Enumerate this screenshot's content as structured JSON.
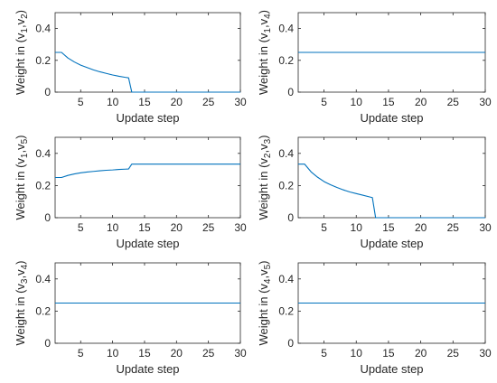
{
  "chart_data": [
    {
      "type": "line",
      "xlabel": "Update step",
      "ylabel": {
        "base": "Weight in (v",
        "sub1": "1",
        "mid": ",v",
        "sub2": "2",
        "end": ")"
      },
      "xlim": [
        1,
        30
      ],
      "ylim": [
        0,
        0.5
      ],
      "xticks": [
        5,
        10,
        15,
        20,
        25,
        30
      ],
      "yticks": [
        0,
        0.2,
        0.4
      ],
      "grid": false,
      "series": [
        {
          "color": "#0072BD",
          "x": [
            1,
            2,
            3,
            4,
            5,
            6,
            7,
            8,
            9,
            10,
            11,
            12,
            12.5,
            13,
            14,
            15,
            20,
            25,
            30
          ],
          "y": [
            0.25,
            0.25,
            0.215,
            0.19,
            0.17,
            0.155,
            0.14,
            0.128,
            0.118,
            0.108,
            0.1,
            0.093,
            0.09,
            0,
            0,
            0,
            0,
            0,
            0
          ]
        }
      ]
    },
    {
      "type": "line",
      "xlabel": "Update step",
      "ylabel": {
        "base": "Weight in (v",
        "sub1": "1",
        "mid": ",v",
        "sub2": "4",
        "end": ")"
      },
      "xlim": [
        1,
        30
      ],
      "ylim": [
        0,
        0.5
      ],
      "xticks": [
        5,
        10,
        15,
        20,
        25,
        30
      ],
      "yticks": [
        0,
        0.2,
        0.4
      ],
      "grid": false,
      "series": [
        {
          "color": "#0072BD",
          "x": [
            1,
            30
          ],
          "y": [
            0.25,
            0.25
          ]
        }
      ]
    },
    {
      "type": "line",
      "xlabel": "Update step",
      "ylabel": {
        "base": "Weight in (v",
        "sub1": "1",
        "mid": ",v",
        "sub2": "5",
        "end": ")"
      },
      "xlim": [
        1,
        30
      ],
      "ylim": [
        0,
        0.5
      ],
      "xticks": [
        5,
        10,
        15,
        20,
        25,
        30
      ],
      "yticks": [
        0,
        0.2,
        0.4
      ],
      "grid": false,
      "series": [
        {
          "color": "#0072BD",
          "x": [
            1,
            2,
            3,
            4,
            5,
            6,
            7,
            8,
            9,
            10,
            11,
            12,
            12.5,
            13,
            14,
            15,
            20,
            25,
            30
          ],
          "y": [
            0.25,
            0.25,
            0.263,
            0.272,
            0.279,
            0.284,
            0.288,
            0.292,
            0.295,
            0.297,
            0.3,
            0.302,
            0.303,
            0.333,
            0.333,
            0.333,
            0.333,
            0.333,
            0.333
          ]
        }
      ]
    },
    {
      "type": "line",
      "xlabel": "Update step",
      "ylabel": {
        "base": "Weight in (v",
        "sub1": "2",
        "mid": ",v",
        "sub2": "3",
        "end": ")"
      },
      "xlim": [
        1,
        30
      ],
      "ylim": [
        0,
        0.5
      ],
      "xticks": [
        5,
        10,
        15,
        20,
        25,
        30
      ],
      "yticks": [
        0,
        0.2,
        0.4
      ],
      "grid": false,
      "series": [
        {
          "color": "#0072BD",
          "x": [
            1,
            2,
            3,
            4,
            5,
            6,
            7,
            8,
            9,
            10,
            11,
            12,
            12.5,
            13,
            14,
            15,
            20,
            25,
            30
          ],
          "y": [
            0.333,
            0.333,
            0.285,
            0.252,
            0.225,
            0.205,
            0.188,
            0.173,
            0.16,
            0.15,
            0.14,
            0.13,
            0.125,
            0,
            0,
            0,
            0,
            0,
            0
          ]
        }
      ]
    },
    {
      "type": "line",
      "xlabel": "Update step",
      "ylabel": {
        "base": "Weight in (v",
        "sub1": "3",
        "mid": ",v",
        "sub2": "4",
        "end": ")"
      },
      "xlim": [
        1,
        30
      ],
      "ylim": [
        0,
        0.5
      ],
      "xticks": [
        5,
        10,
        15,
        20,
        25,
        30
      ],
      "yticks": [
        0,
        0.2,
        0.4
      ],
      "grid": false,
      "series": [
        {
          "color": "#0072BD",
          "x": [
            1,
            30
          ],
          "y": [
            0.25,
            0.25
          ]
        }
      ]
    },
    {
      "type": "line",
      "xlabel": "Update step",
      "ylabel": {
        "base": "Weight in (v",
        "sub1": "4",
        "mid": ",v",
        "sub2": "5",
        "end": ")"
      },
      "xlim": [
        1,
        30
      ],
      "ylim": [
        0,
        0.5
      ],
      "xticks": [
        5,
        10,
        15,
        20,
        25,
        30
      ],
      "yticks": [
        0,
        0.2,
        0.4
      ],
      "grid": false,
      "series": [
        {
          "color": "#0072BD",
          "x": [
            1,
            30
          ],
          "y": [
            0.25,
            0.25
          ]
        }
      ]
    }
  ]
}
